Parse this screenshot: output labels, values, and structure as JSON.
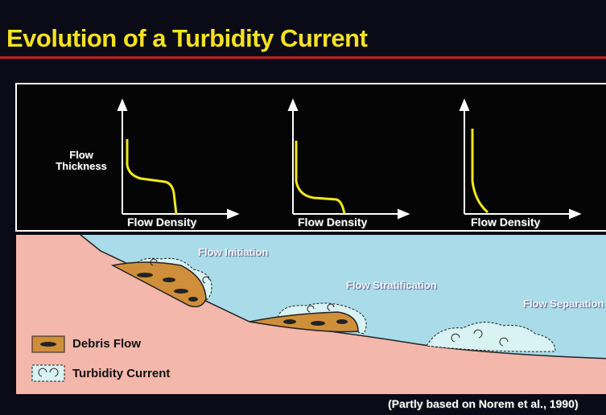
{
  "title": "Evolution of a Turbidity Current",
  "graphs": {
    "y_axis_label": "Flow Thickness",
    "x_axis_labels": [
      "Flow Density",
      "Flow Density",
      "Flow Density"
    ]
  },
  "stages": [
    "Flow Initiation",
    "Flow Stratification",
    "Flow Separation"
  ],
  "legend": [
    "Debris Flow",
    "Turbidity Current"
  ],
  "citation": "(Partly based on Norem et al., 1990)"
}
